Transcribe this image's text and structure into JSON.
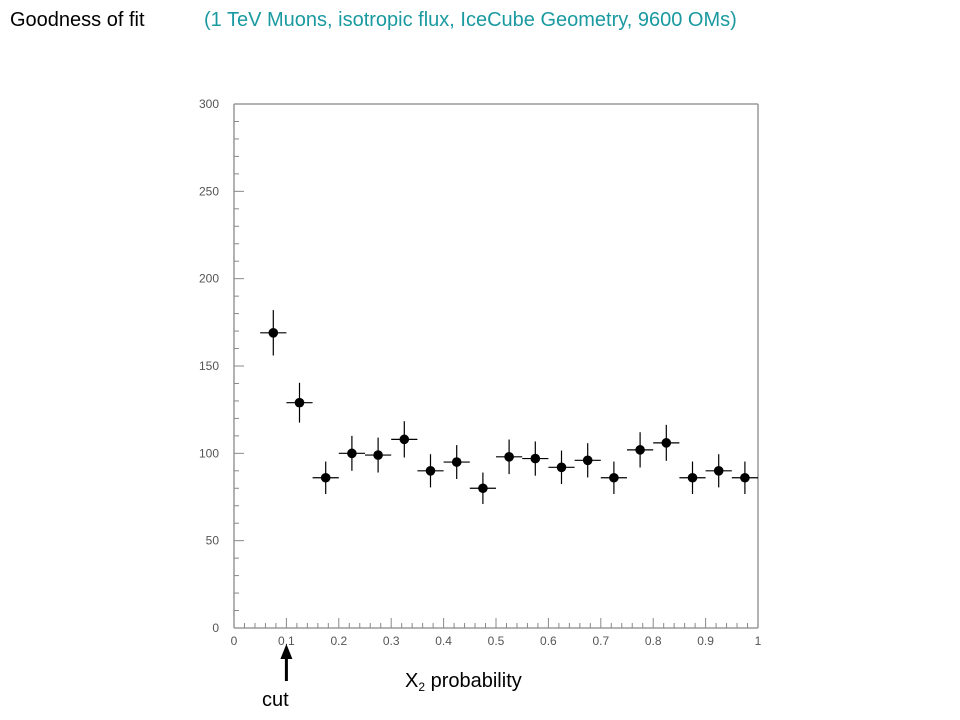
{
  "header": {
    "title": "Goodness of fit",
    "subtitle": "(1 TeV Muons, isotropic flux, IceCube Geometry, 9600 OMs)"
  },
  "annotation": {
    "cut_label": "cut",
    "cut_x": 0.1
  },
  "colors": {
    "title": "#000000",
    "subtitle": "#1a9aa0",
    "axis": "#888888",
    "marker": "#000000"
  },
  "chart_data": {
    "type": "scatter",
    "title": "",
    "xlabel_base": "X",
    "xlabel_sup": "2",
    "xlabel_rest": " probability",
    "ylabel": "",
    "xlim": [
      0,
      1
    ],
    "ylim": [
      0,
      300
    ],
    "x_ticks": [
      "0",
      "0.1",
      "0.2",
      "0.3",
      "0.4",
      "0.5",
      "0.6",
      "0.7",
      "0.8",
      "0.9",
      "1"
    ],
    "y_ticks": [
      "0",
      "50",
      "100",
      "150",
      "200",
      "250",
      "300"
    ],
    "bin_half_width": 0.025,
    "grid": false,
    "series": [
      {
        "x": [
          0.075,
          0.125,
          0.175,
          0.225,
          0.275,
          0.325,
          0.375,
          0.425,
          0.475,
          0.525,
          0.575,
          0.625,
          0.675,
          0.725,
          0.775,
          0.825,
          0.875,
          0.925,
          0.975
        ],
        "y": [
          169,
          129,
          86,
          100,
          99,
          108,
          90,
          95,
          80,
          98,
          97,
          92,
          96,
          86,
          102,
          106,
          86,
          90,
          86
        ],
        "yerr": [
          13,
          11.4,
          9.3,
          10,
          10,
          10.4,
          9.5,
          9.7,
          9,
          9.9,
          9.8,
          9.6,
          9.8,
          9.3,
          10.1,
          10.3,
          9.3,
          9.5,
          9.3
        ]
      }
    ]
  }
}
